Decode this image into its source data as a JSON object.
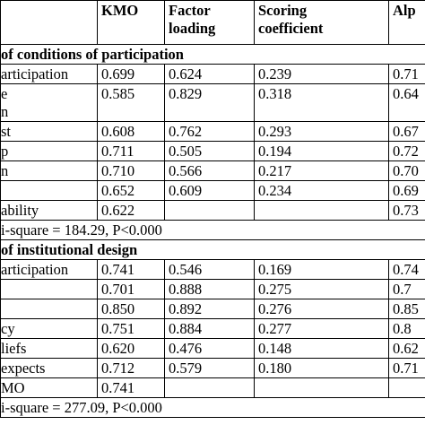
{
  "table": {
    "header": [
      null,
      "KMO",
      "Factor loading",
      "Scoring coefficient",
      "Alp"
    ],
    "sections": [
      {
        "title": "of conditions of participation",
        "rows": [
          [
            "articipation",
            "0.699",
            "0.624",
            "0.239",
            "0.71"
          ],
          [
            "e\nn",
            "0.585",
            "0.829",
            "0.318",
            "0.64"
          ],
          [
            "st",
            "0.608",
            "0.762",
            "0.293",
            "0.67"
          ],
          [
            "p",
            "0.711",
            "0.505",
            "0.194",
            "0.72"
          ],
          [
            "n",
            "0.710",
            "0.566",
            "0.217",
            "0.70"
          ],
          [
            null,
            "0.652",
            "0.609",
            "0.234",
            "0.69"
          ],
          [
            "ability",
            "0.622",
            null,
            null,
            "0.73"
          ]
        ],
        "note": "i-square = 184.29, P<0.000"
      },
      {
        "title": "of institutional design",
        "rows": [
          [
            "articipation",
            "0.741",
            "0.546",
            "0.169",
            "0.74"
          ],
          [
            null,
            "0.701",
            "0.888",
            "0.275",
            "0.7"
          ],
          [
            null,
            "0.850",
            "0.892",
            "0.276",
            "0.85"
          ],
          [
            "cy",
            "0.751",
            "0.884",
            "0.277",
            "0.8"
          ],
          [
            "liefs",
            "0.620",
            "0.476",
            "0.148",
            "0.62"
          ],
          [
            "expects",
            "0.712",
            "0.579",
            "0.180",
            "0.71"
          ],
          [
            "MO",
            "0.741",
            null,
            null,
            null
          ]
        ],
        "note": "i-square = 277.09, P<0.000"
      }
    ]
  }
}
